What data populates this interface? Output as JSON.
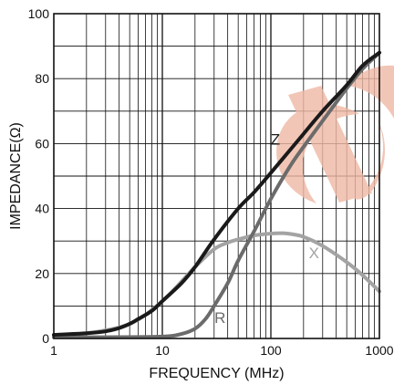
{
  "chart_data": {
    "type": "line",
    "title": "",
    "xlabel": "FREQUENCY (MHz)",
    "ylabel": "IMPEDANCE(Ω)",
    "x_scale": "log",
    "xlim": [
      1,
      1000
    ],
    "ylim": [
      0,
      100
    ],
    "grid": true,
    "x_ticks": [
      {
        "value": 1,
        "label": "1"
      },
      {
        "value": 10,
        "label": "10"
      },
      {
        "value": 100,
        "label": "100"
      },
      {
        "value": 1000,
        "label": "1000"
      }
    ],
    "y_ticks": [
      {
        "value": 0,
        "label": "0"
      },
      {
        "value": 20,
        "label": "20"
      },
      {
        "value": 40,
        "label": "40"
      },
      {
        "value": 60,
        "label": "60"
      },
      {
        "value": 80,
        "label": "80"
      },
      {
        "value": 100,
        "label": "100"
      }
    ],
    "series": [
      {
        "name": "Z",
        "color": "#1a1a1a",
        "label_at": [
          110,
          61
        ],
        "x": [
          1,
          2,
          3,
          4,
          5,
          6,
          8,
          10,
          15,
          20,
          30,
          50,
          70,
          100,
          150,
          200,
          300,
          500,
          700,
          1000
        ],
        "y": [
          1.1,
          1.6,
          2.2,
          3.2,
          4.5,
          6,
          8.5,
          11.5,
          17,
          22,
          30.5,
          40,
          45,
          51,
          58,
          63,
          70,
          78,
          84,
          88
        ]
      },
      {
        "name": "R",
        "color": "#6b6b6b",
        "label_at": [
          34,
          6
        ],
        "x": [
          1,
          3,
          10,
          15,
          20,
          25,
          30,
          40,
          50,
          70,
          100,
          150,
          200,
          300,
          500,
          700,
          1000
        ],
        "y": [
          0.4,
          0.4,
          0.6,
          1.4,
          3,
          6,
          10,
          17,
          24,
          33,
          43,
          53,
          59,
          67,
          77,
          83,
          88
        ]
      },
      {
        "name": "X",
        "color": "#a3a3a3",
        "label_at": [
          250,
          26
        ],
        "x": [
          1,
          2,
          5,
          10,
          20,
          30,
          40,
          50,
          70,
          100,
          130,
          150,
          200,
          300,
          500,
          700,
          1000
        ],
        "y": [
          1.1,
          1.6,
          4.5,
          11.5,
          22,
          27.5,
          29.5,
          30.5,
          31.7,
          32.3,
          32.4,
          32.2,
          31.3,
          28.5,
          23.5,
          19.5,
          14.5
        ]
      }
    ]
  },
  "watermark_color": "#f0b8a4"
}
